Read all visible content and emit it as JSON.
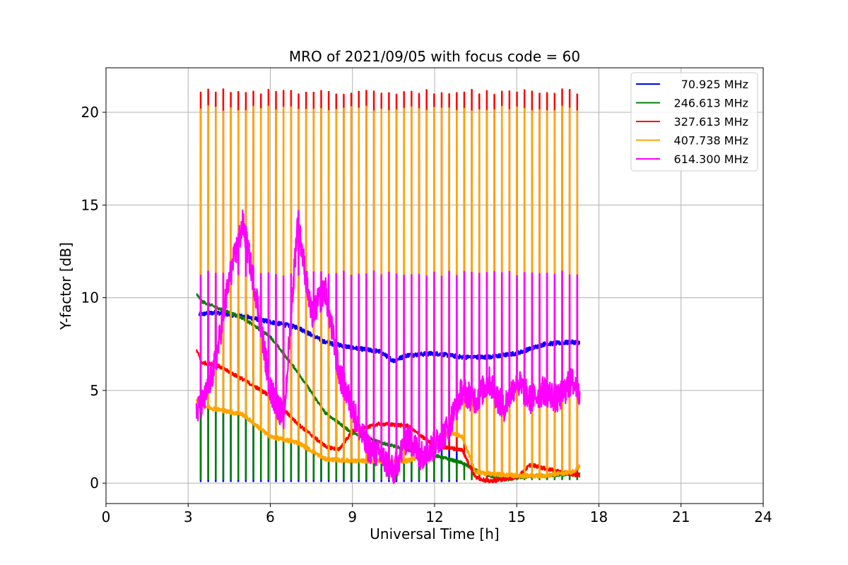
{
  "chart_data": {
    "type": "line",
    "title": "MRO of 2021/09/05 with focus code = 60",
    "xlabel": "Universal Time [h]",
    "ylabel": "Y-factor [dB]",
    "xlim": [
      0,
      24
    ],
    "ylim": [
      -1.1,
      22.4
    ],
    "xticks": [
      "0",
      "3",
      "6",
      "9",
      "12",
      "15",
      "18",
      "21",
      "24"
    ],
    "yticks": [
      "0",
      "5",
      "10",
      "15",
      "20"
    ],
    "grid": true,
    "legend_position": "top-right",
    "pulse_period_h": 0.275,
    "pulse_count": 51,
    "series": [
      {
        "name": "70.925 MHz",
        "color": "#0000ff",
        "pulse_low": 0.1,
        "pulse_low_until_h": 13,
        "start_h": 3.4,
        "end_h": 17.3,
        "x": [
          3.4,
          4,
          5,
          6,
          7,
          8,
          9,
          10,
          10.5,
          11,
          12,
          13,
          14,
          15,
          16,
          17,
          17.3
        ],
        "y": [
          9.1,
          9.2,
          9.0,
          8.7,
          8.4,
          7.6,
          7.3,
          7.1,
          6.6,
          6.9,
          7.0,
          6.8,
          6.8,
          7.0,
          7.5,
          7.6,
          7.6
        ]
      },
      {
        "name": "246.613 MHz",
        "color": "#008000",
        "pulse_low": 0.2,
        "pulse_low_until_h": 17.3,
        "start_h": 3.3,
        "end_h": 17.3,
        "x": [
          3.3,
          3.5,
          4,
          5,
          6,
          7,
          8,
          9,
          10,
          11,
          12,
          13,
          13.5,
          14,
          14.7,
          15,
          16,
          17,
          17.3
        ],
        "y": [
          10.2,
          9.8,
          9.5,
          8.9,
          7.9,
          6.0,
          3.8,
          2.7,
          2.2,
          1.8,
          1.5,
          1.1,
          0.7,
          0.4,
          0.2,
          0.3,
          0.4,
          0.5,
          0.5
        ]
      },
      {
        "name": "327.613 MHz",
        "color": "#ff0000",
        "pulse_high": 21.1,
        "start_h": 3.3,
        "end_h": 17.3,
        "x": [
          3.3,
          3.5,
          4,
          5,
          6,
          7,
          8,
          8.5,
          9,
          10,
          11,
          12,
          13,
          13.5,
          14,
          15,
          15.5,
          16,
          17,
          17.3
        ],
        "y": [
          7.2,
          6.5,
          6.4,
          5.6,
          4.7,
          3.2,
          2.0,
          1.8,
          2.8,
          3.2,
          3.1,
          2.0,
          1.8,
          0.3,
          0.1,
          0.3,
          1.0,
          0.8,
          0.5,
          0.4
        ]
      },
      {
        "name": "407.738 MHz",
        "color": "#ffa500",
        "pulse_high": 20.2,
        "start_h": 3.3,
        "end_h": 17.3,
        "x": [
          3.3,
          3.5,
          4,
          5,
          6,
          7,
          8,
          9,
          10,
          11,
          12,
          12.5,
          13,
          13.5,
          14,
          15,
          16,
          17,
          17.3
        ],
        "y": [
          4.5,
          4.2,
          4.0,
          3.7,
          2.5,
          2.2,
          1.3,
          1.2,
          1.2,
          1.2,
          1.7,
          2.8,
          2.5,
          0.6,
          0.5,
          0.4,
          0.4,
          0.6,
          0.9
        ]
      },
      {
        "name": "614.300 MHz",
        "color": "#ff00ff",
        "pulse_high": 11.3,
        "start_h": 3.3,
        "end_h": 17.3,
        "x": [
          3.3,
          3.6,
          4,
          4.5,
          5,
          5.5,
          6,
          6.5,
          7,
          7.5,
          8,
          8.5,
          9,
          9.5,
          10,
          10.5,
          11,
          11.5,
          12,
          12.5,
          13,
          13.5,
          14,
          14.5,
          15,
          15.5,
          16,
          16.5,
          17,
          17.3
        ],
        "y": [
          3.8,
          4.5,
          6.5,
          11.0,
          14.0,
          10.0,
          5.0,
          3.5,
          14.2,
          9.0,
          10.5,
          6.0,
          4.0,
          2.0,
          1.5,
          0.6,
          2.5,
          1.5,
          2.0,
          3.0,
          5.0,
          4.5,
          5.5,
          4.0,
          5.5,
          4.5,
          5.0,
          4.5,
          5.5,
          5.0
        ]
      }
    ]
  }
}
